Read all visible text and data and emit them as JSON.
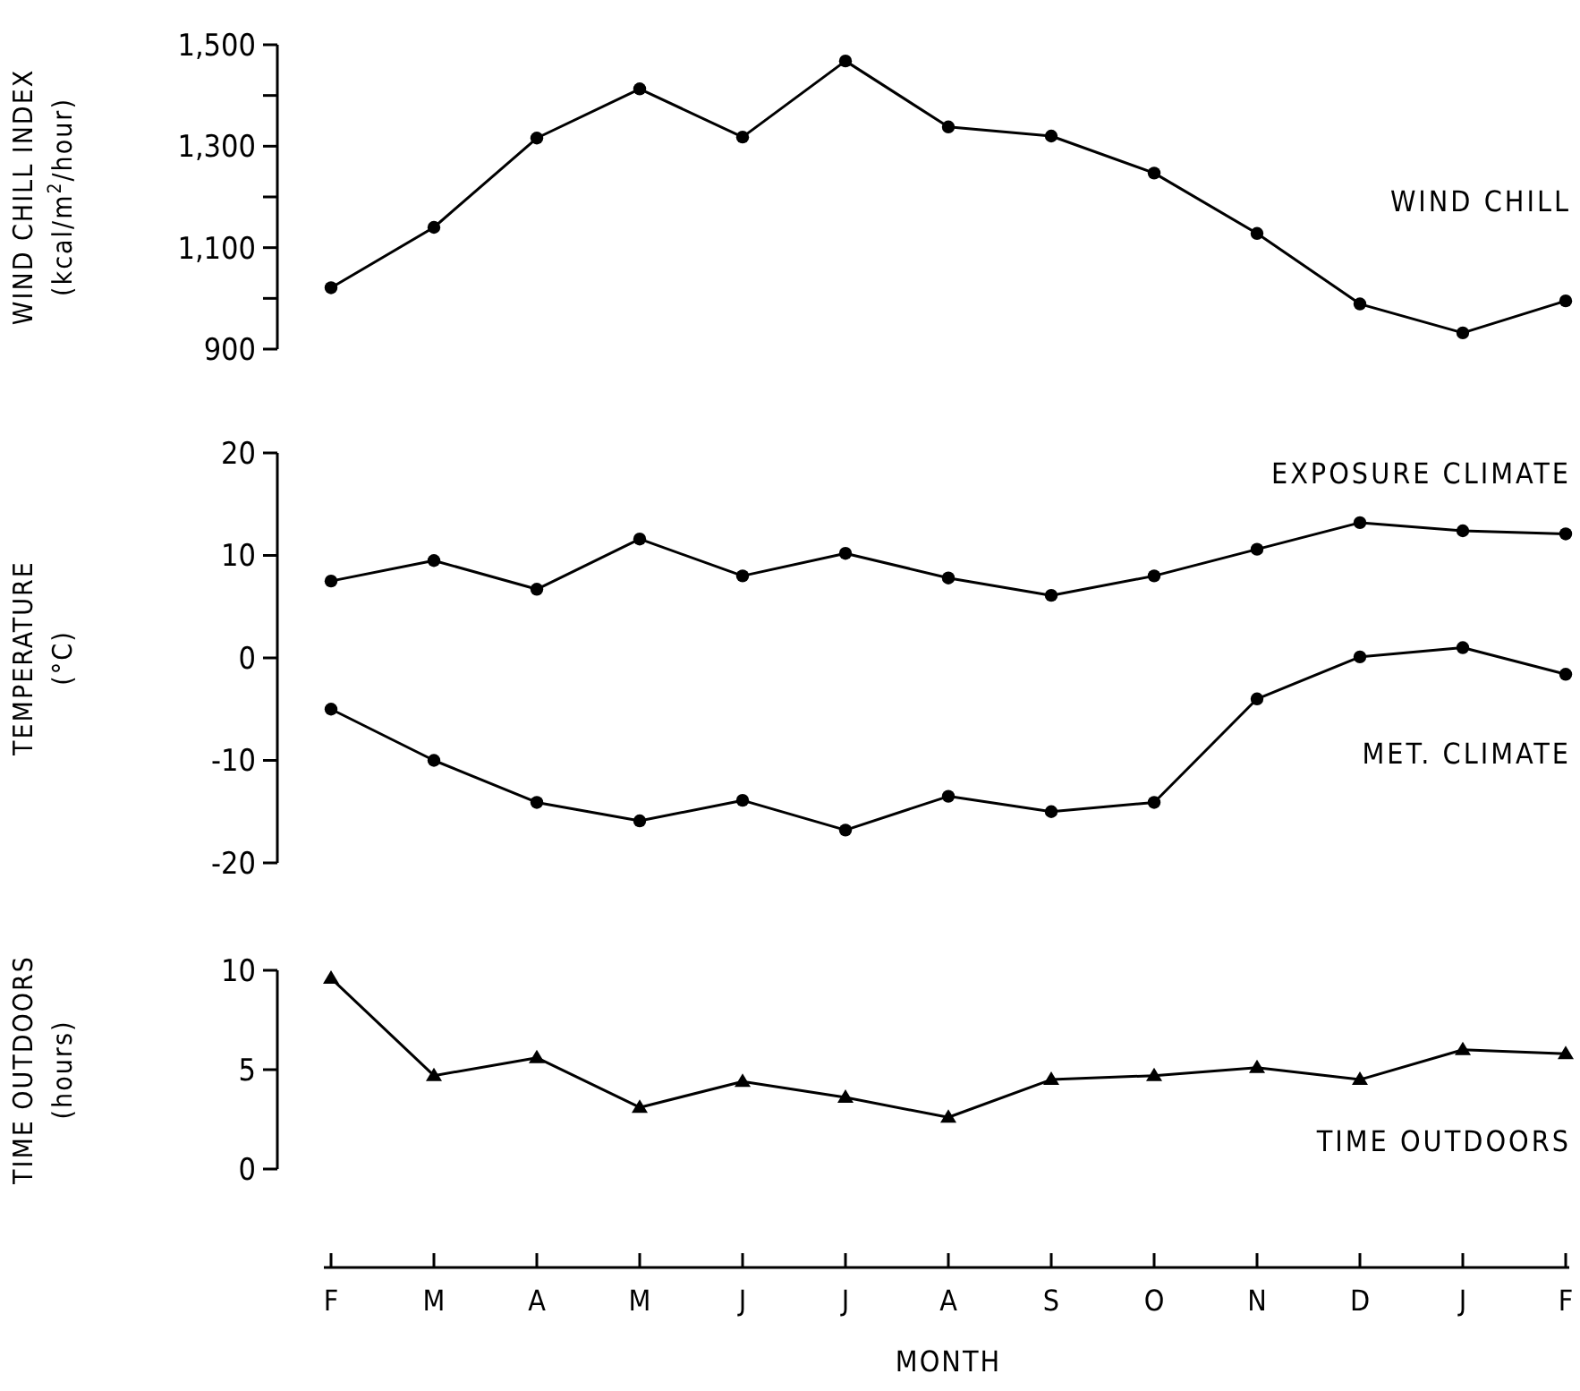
{
  "chart_data": [
    {
      "type": "line",
      "categories": [
        null,
        null,
        null,
        null,
        null,
        null,
        null,
        null,
        null,
        null,
        null,
        null,
        null
      ],
      "ylabel": "WIND CHILL INDEX\n(kcal/m$^{2}$/hour)",
      "ylim": [
        900,
        1500
      ],
      "yticks": [
        900,
        {
          "value": 1000,
          "label": null
        },
        {
          "value": 1100,
          "label": "1,100"
        },
        {
          "value": 1200,
          "label": null
        },
        {
          "value": 1300,
          "label": "1,300"
        },
        {
          "value": 1400,
          "label": null
        },
        {
          "value": 1500,
          "label": "1,500"
        }
      ],
      "tick_labels": "y",
      "grid": false,
      "marker": "circle",
      "line_style": "solid",
      "series": [
        {
          "name": "WIND CHILL",
          "color": "#000000",
          "values": [
            1021,
            1140,
            1316,
            1413,
            1318,
            1468,
            1338,
            1320,
            1247,
            1128,
            989,
            932,
            995
          ]
        }
      ]
    },
    {
      "type": "line",
      "categories": [
        null,
        null,
        null,
        null,
        null,
        null,
        null,
        null,
        null,
        null,
        null,
        null,
        null
      ],
      "ylabel": "TEMPERATURE\n(°C)",
      "ylim": [
        -20,
        20
      ],
      "yticks": [
        -20,
        -10,
        0,
        10,
        20
      ],
      "tick_labels": "y",
      "grid": false,
      "marker": "circle",
      "line_style": "solid",
      "series": [
        {
          "name": "EXPOSURE CLIMATE",
          "color": "#000000",
          "values": [
            7.5,
            9.5,
            6.7,
            11.6,
            8.0,
            10.2,
            7.8,
            6.1,
            8.0,
            10.6,
            13.2,
            12.4,
            12.1
          ]
        },
        {
          "name": "MET. CLIMATE",
          "color": "#000000",
          "values": [
            -5.0,
            -10.0,
            -14.1,
            -15.9,
            -13.9,
            -16.8,
            -13.5,
            -15.0,
            -14.1,
            -4.0,
            0.1,
            1.0,
            -1.6
          ]
        }
      ]
    },
    {
      "type": "line",
      "categories": [
        "F",
        "M",
        "A",
        "M",
        "J",
        "J",
        "A",
        "S",
        "O",
        "N",
        "D",
        "J",
        "F"
      ],
      "xlabel": "MONTH",
      "ylabel": "TIME OUTDOORS\n(hours)",
      "ylim": [
        0,
        10
      ],
      "yticks": [
        0,
        5,
        10
      ],
      "grid": false,
      "marker": "triangle",
      "line_style": "solid",
      "series": [
        {
          "name": "TIME OUTDOORS",
          "color": "#000000",
          "values": [
            9.6,
            4.7,
            5.6,
            3.1,
            4.4,
            3.6,
            2.6,
            4.5,
            4.7,
            5.1,
            4.5,
            6.0,
            5.8
          ]
        }
      ]
    }
  ]
}
